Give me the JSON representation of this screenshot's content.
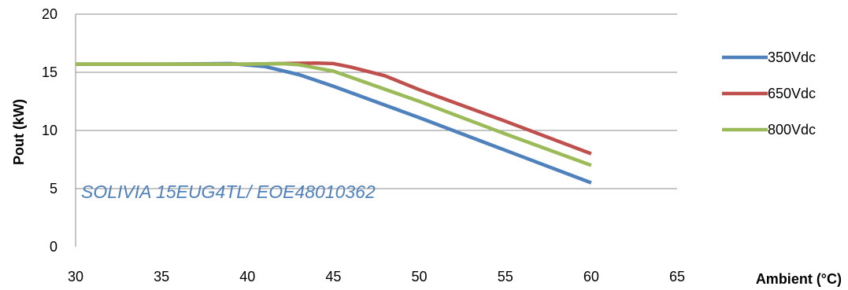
{
  "chart_data": {
    "type": "line",
    "xlabel": "Ambient (°C)",
    "ylabel": "Pout (kW)",
    "xlim": [
      30,
      65
    ],
    "ylim": [
      0,
      20
    ],
    "xticks": [
      30,
      35,
      40,
      45,
      50,
      55,
      60,
      65
    ],
    "yticks": [
      0,
      5,
      10,
      15,
      20
    ],
    "xtick_labels": [
      "30",
      "35",
      "40",
      "45",
      "50",
      "55",
      "60",
      "65"
    ],
    "ytick_labels": [
      "0",
      "5",
      "10",
      "15",
      "20"
    ],
    "grid": "horizontal",
    "legend_position": "right",
    "annotation": "SOLIVIA 15EUG4TL/ EOE48010362",
    "series": [
      {
        "name": "350Vdc",
        "color": "#4f81bd",
        "x": [
          30,
          35,
          39,
          41,
          43,
          45,
          50,
          55,
          60
        ],
        "y": [
          15.7,
          15.7,
          15.75,
          15.5,
          14.8,
          13.8,
          11.1,
          8.3,
          5.5
        ]
      },
      {
        "name": "650Vdc",
        "color": "#c0504d",
        "x": [
          30,
          35,
          40,
          42,
          44,
          45,
          46,
          48,
          50,
          55,
          60
        ],
        "y": [
          15.7,
          15.7,
          15.7,
          15.75,
          15.8,
          15.75,
          15.45,
          14.7,
          13.5,
          10.8,
          8.0
        ]
      },
      {
        "name": "800Vdc",
        "color": "#9bbb59",
        "x": [
          30,
          35,
          40,
          42,
          43,
          45,
          50,
          55,
          60
        ],
        "y": [
          15.7,
          15.7,
          15.7,
          15.75,
          15.65,
          15.1,
          12.5,
          9.7,
          7.0
        ]
      }
    ]
  }
}
